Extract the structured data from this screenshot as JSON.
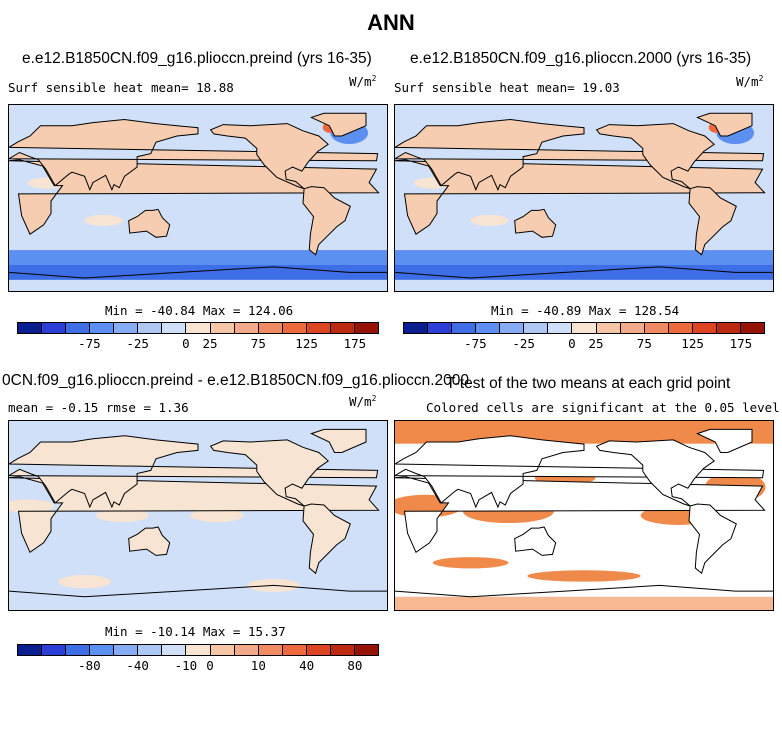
{
  "title": "ANN",
  "units": "W/m",
  "units_exp": "2",
  "panels": {
    "p1": {
      "title": "e.e12.B1850CN.f09_g16.plioccn.preind (yrs 16-35)",
      "var_label": "Surf sensible heat   mean=  18.88",
      "minmax": "Min = -40.84 Max = 124.06"
    },
    "p2": {
      "title": "e.e12.B1850CN.f09_g16.plioccn.2000 (yrs 16-35)",
      "var_label": "Surf sensible heat   mean=  19.03",
      "minmax": "Min = -40.89 Max = 128.54"
    },
    "p3": {
      "title": "0CN.f09_g16.plioccn.preind - e.e12.B1850CN.f09_g16.plioccn.2000",
      "var_label": "mean =  -0.15     rmse =   1.36",
      "minmax": "Min = -10.14 Max =  15.37"
    },
    "p4": {
      "title": "T-test of the two means at each grid point",
      "var_label": "Colored cells are significant at the 0.05 level"
    }
  },
  "colorbar_colors": [
    "#0a1f8f",
    "#2b3fd6",
    "#3e6ee6",
    "#5b8ff0",
    "#86acf4",
    "#aec8f6",
    "#cfe0f8",
    "#f7e4d2",
    "#f6c6a6",
    "#f3a98a",
    "#f08a62",
    "#ee6a3e",
    "#dc4422",
    "#bd2a12",
    "#951406"
  ],
  "chart_data": [
    {
      "type": "heatmap",
      "title": "e.e12.B1850CN.f09_g16.plioccn.preind (yrs 16-35)",
      "variable": "Surf sensible heat",
      "units": "W/m2",
      "mean": 18.88,
      "min": -40.84,
      "max": 124.06,
      "colorbar_ticks": [
        "-75",
        "-25",
        "0",
        "25",
        "75",
        "125",
        "175"
      ]
    },
    {
      "type": "heatmap",
      "title": "e.e12.B1850CN.f09_g16.plioccn.2000 (yrs 16-35)",
      "variable": "Surf sensible heat",
      "units": "W/m2",
      "mean": 19.03,
      "min": -40.89,
      "max": 128.54,
      "colorbar_ticks": [
        "-75",
        "-25",
        "0",
        "25",
        "75",
        "125",
        "175"
      ]
    },
    {
      "type": "heatmap",
      "title": "0CN.f09_g16.plioccn.preind - e.e12.B1850CN.f09_g16.plioccn.2000",
      "units": "W/m2",
      "mean": -0.15,
      "rmse": 1.36,
      "min": -10.14,
      "max": 15.37,
      "colorbar_ticks": [
        "-80",
        "-40",
        "-10",
        "0",
        "10",
        "40",
        "80"
      ]
    },
    {
      "type": "heatmap",
      "title": "T-test of the two means at each grid point",
      "annotation": "Colored cells are significant at the 0.05 level",
      "significance_level": 0.05
    }
  ]
}
